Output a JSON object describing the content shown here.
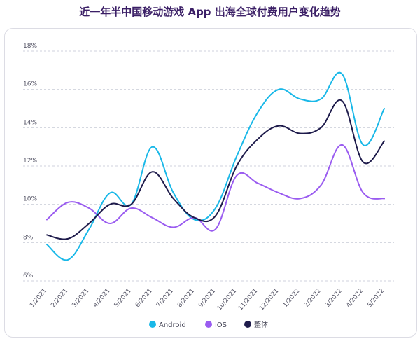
{
  "title": "近一年半中国移动游戏 App 出海全球付费用户变化趋势",
  "chart_data": {
    "type": "line",
    "categories": [
      "1/2021",
      "2/2021",
      "3/2021",
      "4/2021",
      "5/2021",
      "6/2021",
      "7/2021",
      "8/2021",
      "9/2021",
      "10/2021",
      "11/2021",
      "12/2021",
      "1/2022",
      "2/2022",
      "3/2022",
      "4/2022",
      "5/2022"
    ],
    "y_ticks": [
      "6%",
      "8%",
      "10%",
      "12%",
      "14%",
      "16%",
      "18%"
    ],
    "ylim": [
      6,
      18
    ],
    "grid": "horizontal dashed",
    "legend_position": "bottom-center",
    "series": [
      {
        "name": "Android",
        "color": "#19b8e8",
        "values": [
          7.9,
          7.1,
          8.7,
          10.6,
          10.0,
          13.0,
          10.6,
          9.2,
          9.8,
          12.5,
          14.8,
          16.0,
          15.5,
          15.5,
          16.8,
          13.1,
          15.0
        ]
      },
      {
        "name": "iOS",
        "color": "#9a5cf0",
        "values": [
          9.2,
          10.1,
          9.8,
          9.0,
          9.8,
          9.3,
          8.8,
          9.3,
          8.7,
          11.5,
          11.1,
          10.6,
          10.3,
          11.0,
          13.1,
          10.6,
          10.3
        ]
      },
      {
        "name": "整体",
        "color": "#1e1b4b",
        "values": [
          8.4,
          8.2,
          9.0,
          10.0,
          10.0,
          11.7,
          10.3,
          9.3,
          9.4,
          12.0,
          13.4,
          14.1,
          13.7,
          14.0,
          15.4,
          12.2,
          13.3
        ]
      }
    ]
  }
}
